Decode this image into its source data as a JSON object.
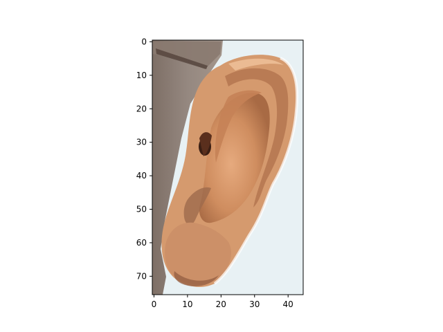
{
  "figure": {
    "background": "#ffffff",
    "image": {
      "subject": "ear-icon",
      "colors": {
        "background": "#e8f1f4",
        "skin_light": "#e0a57c",
        "skin_mid": "#c98b5f",
        "skin_dark": "#9a6444",
        "shadow": "#3b1f14",
        "hair": "#8b7c72"
      }
    },
    "x_axis": {
      "range": [
        0,
        44
      ],
      "ticks": [
        "0",
        "10",
        "20",
        "30",
        "40"
      ]
    },
    "y_axis": {
      "range": [
        0,
        75
      ],
      "inverted": true,
      "ticks": [
        "0",
        "10",
        "20",
        "30",
        "40",
        "50",
        "60",
        "70"
      ]
    }
  }
}
